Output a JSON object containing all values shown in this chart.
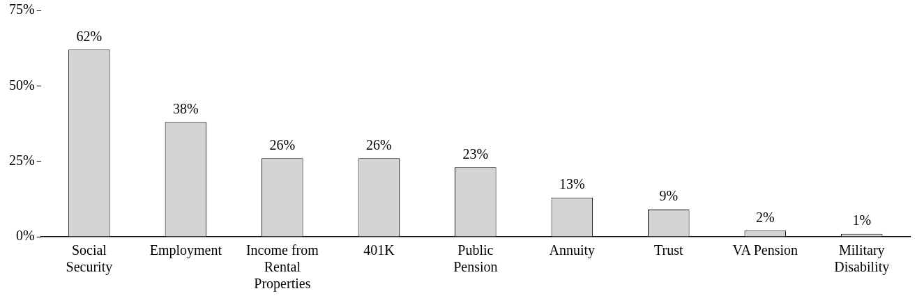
{
  "chart_data": {
    "type": "bar",
    "categories": [
      "Social Security",
      "Employment",
      "Income from Rental Properties",
      "401K",
      "Public Pension",
      "Annuity",
      "Trust",
      "VA Pension",
      "Military Disability"
    ],
    "values": [
      62,
      38,
      26,
      26,
      23,
      13,
      9,
      2,
      1
    ],
    "value_labels": [
      "62%",
      "38%",
      "26%",
      "26%",
      "23%",
      "13%",
      "9%",
      "2%",
      "1%"
    ],
    "color": "#d4d4d4",
    "ylim": [
      0,
      75
    ],
    "yticks": [
      {
        "value": 0,
        "label": "0%"
      },
      {
        "value": 25,
        "label": "25%"
      },
      {
        "value": 50,
        "label": "50%"
      },
      {
        "value": 75,
        "label": "75%"
      }
    ],
    "grid": false,
    "legend": false
  }
}
